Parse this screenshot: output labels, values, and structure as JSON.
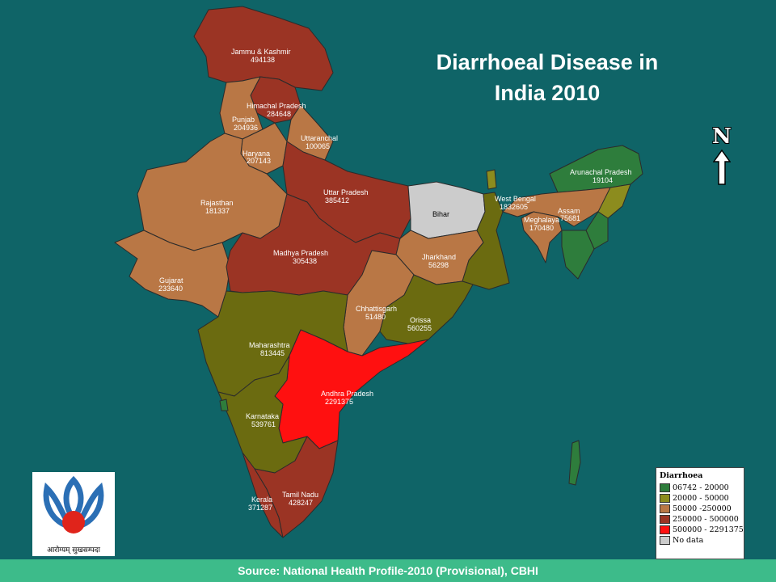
{
  "title": "Diarrhoeal Disease in India 2010",
  "north_label": "N",
  "legend": {
    "title": "Diarrhoea",
    "items": [
      {
        "label": "06742 - 20000",
        "color": "#2e7d3c"
      },
      {
        "label": "20000 - 50000",
        "color": "#8c8c1e"
      },
      {
        "label": "50000 -250000",
        "color": "#b97745"
      },
      {
        "label": "250000 - 500000",
        "color": "#9b3424"
      },
      {
        "label": "500000 - 2291375",
        "color": "#ff1010"
      },
      {
        "label": "No data",
        "color": "#cccccc"
      }
    ]
  },
  "states": [
    {
      "name": "Jammu & Kashmir",
      "value": "494138"
    },
    {
      "name": "Himachal Pradesh",
      "value": "284648"
    },
    {
      "name": "Punjab",
      "value": "204936"
    },
    {
      "name": "Uttaranchal",
      "value": "100065"
    },
    {
      "name": "Haryana",
      "value": "207143"
    },
    {
      "name": "Rajasthan",
      "value": "181337"
    },
    {
      "name": "Uttar Pradesh",
      "value": "385412"
    },
    {
      "name": "Bihar",
      "value": ""
    },
    {
      "name": "West Bengal",
      "value": "1832605"
    },
    {
      "name": "Arunachal Pradesh",
      "value": "19104"
    },
    {
      "name": "Assam",
      "value": "75681"
    },
    {
      "name": "Meghalaya",
      "value": "170480"
    },
    {
      "name": "Jharkhand",
      "value": "56298"
    },
    {
      "name": "Madhya Pradesh",
      "value": "305438"
    },
    {
      "name": "Gujarat",
      "value": "233640"
    },
    {
      "name": "Chhattisgarh",
      "value": "51480"
    },
    {
      "name": "Orissa",
      "value": "560255"
    },
    {
      "name": "Maharashtra",
      "value": "813445"
    },
    {
      "name": "Andhra Pradesh",
      "value": "2291375"
    },
    {
      "name": "Karnataka",
      "value": "539761"
    },
    {
      "name": "Kerala",
      "value": "371287"
    },
    {
      "name": "Tamil Nadu",
      "value": "428247"
    }
  ],
  "logo_tagline": "आरोग्यम् सुखसम्पदा",
  "source": "Source: National Health Profile-2010 (Provisional), CBHI"
}
